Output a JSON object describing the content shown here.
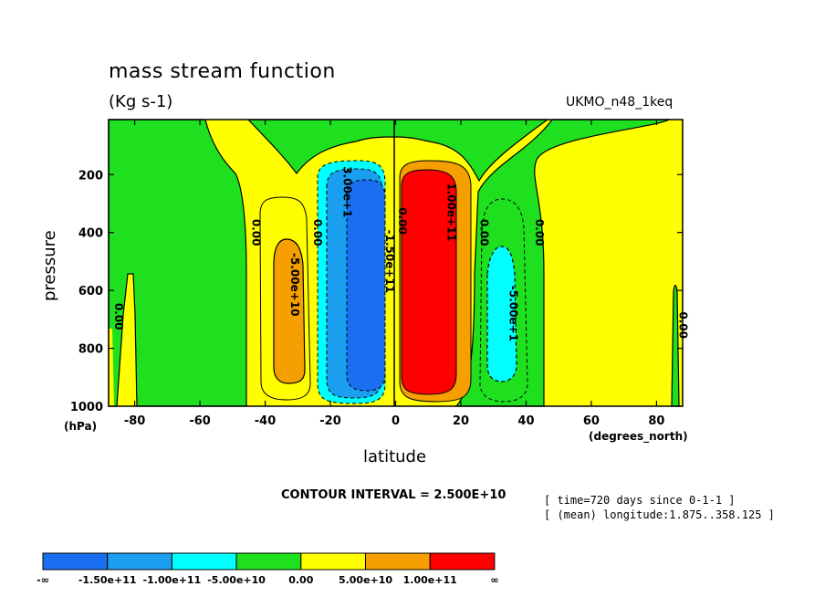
{
  "chart_data": {
    "type": "contour",
    "title": "mass stream function",
    "units": "(Kg s-1)",
    "dataset": "UKMO_n48_1keq",
    "xlabel": "latitude",
    "xunit": "(degrees_north)",
    "ylabel": "pressure",
    "yunit": "(hPa)",
    "xlim": [
      -88,
      88
    ],
    "ylim": [
      1000,
      10
    ],
    "x_ticks": [
      -80,
      -60,
      -40,
      -20,
      0,
      20,
      40,
      60,
      80
    ],
    "y_ticks": [
      200,
      400,
      600,
      800,
      1000
    ],
    "contour_interval": "CONTOUR INTERVAL = 2.500E+10",
    "meta": [
      "[ time=720 days since 0-1-1 ]",
      "[ (mean) longitude:1.875..358.125 ]"
    ],
    "legend": {
      "colors": [
        "#1a6ef0",
        "#1a9ef0",
        "#00ffff",
        "#1ee01e",
        "#ffff00",
        "#f5a000",
        "#ff0000"
      ],
      "labels": [
        "-∞",
        "-1.50e+11",
        "-1.00e+11",
        "-5.00e+10",
        "0.00",
        "5.00e+10",
        "1.00e+11",
        "∞"
      ]
    },
    "contour_labels": [
      {
        "text": "0.00",
        "lat": -44,
        "p": 400
      },
      {
        "text": "0.00",
        "lat": -25,
        "p": 400
      },
      {
        "text": "-5.00e+10",
        "lat": -32,
        "p": 580
      },
      {
        "text": "3.00e+1",
        "lat": -16,
        "p": 260
      },
      {
        "text": "-1.50e+11",
        "lat": -3,
        "p": 500
      },
      {
        "text": "0.00",
        "lat": 1,
        "p": 360
      },
      {
        "text": "1.00e+11",
        "lat": 16,
        "p": 330
      },
      {
        "text": "0.00",
        "lat": 26,
        "p": 400
      },
      {
        "text": "-5.00e+1",
        "lat": 35,
        "p": 680
      },
      {
        "text": "0.00",
        "lat": 43,
        "p": 400
      },
      {
        "text": "0.00",
        "lat": 87,
        "p": 720
      },
      {
        "text": "0.00",
        "lat": -86,
        "p": 690
      }
    ]
  }
}
